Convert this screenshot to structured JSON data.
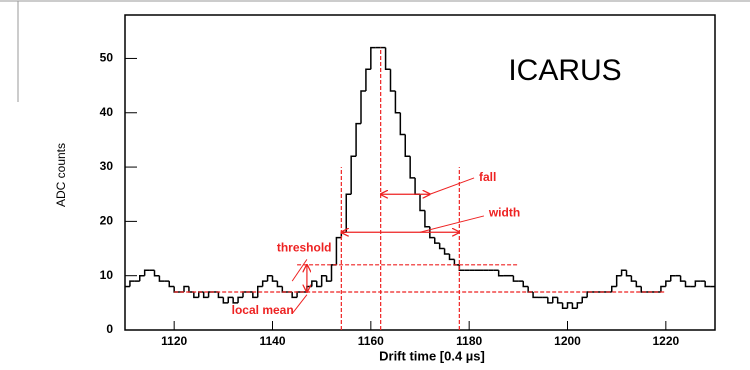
{
  "chart_data": {
    "type": "histogram",
    "xlabel": "Drift time [0.4 µs]",
    "ylabel": "ADC counts",
    "annotation_title": "ICARUS",
    "color": "#000000",
    "marker_color": "#ee2222",
    "bins": [
      1110,
      1111,
      1112,
      1113,
      1114,
      1115,
      1116,
      1117,
      1118,
      1119,
      1120,
      1121,
      1122,
      1123,
      1124,
      1125,
      1126,
      1127,
      1128,
      1129,
      1130,
      1131,
      1132,
      1133,
      1134,
      1135,
      1136,
      1137,
      1138,
      1139,
      1140,
      1141,
      1142,
      1143,
      1144,
      1145,
      1146,
      1147,
      1148,
      1149,
      1150,
      1151,
      1152,
      1153,
      1154,
      1155,
      1156,
      1157,
      1158,
      1159,
      1160,
      1161,
      1162,
      1163,
      1164,
      1165,
      1166,
      1167,
      1168,
      1169,
      1170,
      1171,
      1172,
      1173,
      1174,
      1175,
      1176,
      1177,
      1178,
      1179,
      1180,
      1181,
      1182,
      1183,
      1184,
      1185,
      1186,
      1187,
      1188,
      1189,
      1190,
      1191,
      1192,
      1193,
      1194,
      1195,
      1196,
      1197,
      1198,
      1199,
      1200,
      1201,
      1202,
      1203,
      1204,
      1205,
      1206,
      1207,
      1208,
      1209,
      1210,
      1211,
      1212,
      1213,
      1214,
      1215,
      1216,
      1217,
      1218,
      1219,
      1220,
      1221,
      1222,
      1223,
      1224,
      1225,
      1226,
      1227,
      1228,
      1229,
      1230
    ],
    "values": [
      8,
      9,
      9,
      10,
      11,
      11,
      10,
      9,
      9,
      8,
      7,
      7,
      8,
      7,
      6,
      7,
      6,
      7,
      7,
      6,
      5,
      6,
      5,
      6,
      7,
      7,
      6,
      8,
      9,
      10,
      9,
      8,
      7,
      7,
      6,
      7,
      7,
      8,
      9,
      8,
      10,
      9,
      12,
      17,
      18,
      25,
      32,
      38,
      44,
      48,
      52,
      52,
      52,
      48,
      44,
      40,
      36,
      32,
      28,
      25,
      22,
      19,
      17,
      16,
      15,
      14,
      13,
      12,
      11,
      11,
      11,
      11,
      11,
      11,
      11,
      11,
      10,
      10,
      10,
      9,
      9,
      8,
      7,
      6,
      6,
      6,
      5,
      6,
      5,
      4,
      5,
      4,
      5,
      6,
      7,
      7,
      7,
      7,
      7,
      8,
      10,
      11,
      10,
      9,
      8,
      7,
      7,
      7,
      7,
      8,
      9,
      10,
      10,
      9,
      8,
      8,
      9,
      9,
      8,
      8
    ],
    "xlim": [
      1110,
      1230
    ],
    "ylim": [
      0,
      58
    ],
    "xticks": [
      1120,
      1140,
      1160,
      1180,
      1200,
      1220
    ],
    "yticks": [
      0,
      10,
      20,
      30,
      40,
      50
    ],
    "markers": {
      "start": 1154,
      "peak": 1162,
      "fall_end": 1172,
      "end": 1178,
      "local_mean": 7,
      "threshold": 12
    },
    "marker_labels": {
      "fall": "fall",
      "width": "width",
      "threshold": "threshold",
      "local_mean": "local mean"
    }
  }
}
